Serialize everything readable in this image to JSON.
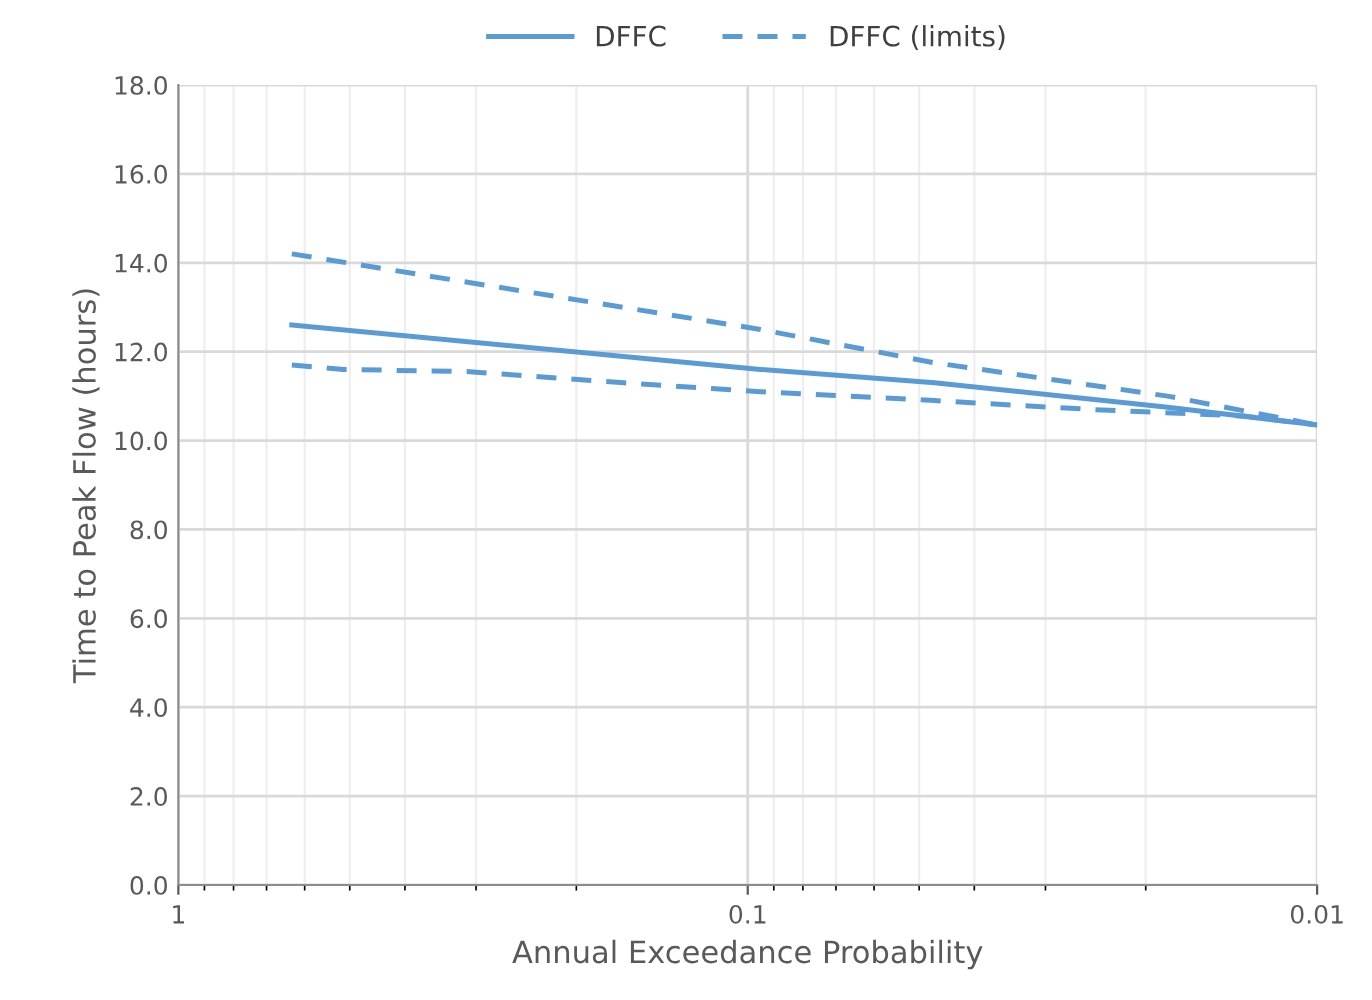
{
  "chart_data": {
    "type": "line",
    "xlabel": "Annual Exceedance Probability",
    "ylabel": "Time to Peak Flow (hours)",
    "log": "x",
    "grid": true,
    "legend": "top",
    "xlim": [
      1,
      0.01
    ],
    "xticks": [
      1,
      0.1,
      0.01
    ],
    "ylim": [
      0,
      18
    ],
    "yticks": [
      {
        "value": 0,
        "label": "0.0"
      },
      {
        "value": 2,
        "label": "2.0"
      },
      {
        "value": 4,
        "label": "4.0"
      },
      {
        "value": 6,
        "label": "6.0"
      },
      {
        "value": 8,
        "label": "8.0"
      },
      {
        "value": 10,
        "label": "10.0"
      },
      {
        "value": 12,
        "label": "12.0"
      },
      {
        "value": 14,
        "label": "14.0"
      },
      {
        "value": 16,
        "label": "16.0"
      },
      {
        "value": 18,
        "label": "18.0"
      }
    ],
    "series": [
      {
        "name": "DFFC",
        "color": "#5b9bd5",
        "line_style": "solid",
        "x": [
          0.632,
          0.095,
          0.047,
          0.0183,
          0.01
        ],
        "values": [
          12.6,
          11.6,
          11.3,
          10.75,
          10.35
        ]
      },
      {
        "name": "DFFC (limits)",
        "color": "#5b9bd5",
        "line_style": "dashed",
        "x": [
          0.632,
          0.095,
          0.047,
          0.0183,
          0.01
        ],
        "values": [
          14.2,
          12.5,
          11.75,
          11.0,
          10.35
        ]
      },
      {
        "color": "#5b9bd5",
        "line_style": "dashed",
        "x": [
          0.632,
          0.513,
          0.308,
          0.165,
          0.095,
          0.047,
          0.025,
          0.0134,
          0.01
        ],
        "values": [
          11.7,
          11.6,
          11.55,
          11.3,
          11.1,
          10.9,
          10.7,
          10.55,
          10.35
        ]
      }
    ]
  }
}
